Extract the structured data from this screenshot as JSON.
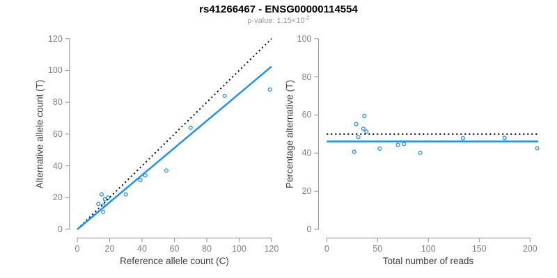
{
  "header": {
    "title": "rs41266467 - ENSG00000114554",
    "p_value_label": "p-value: ",
    "p_value_mantissa": "1.15×10",
    "p_value_exponent": "-2"
  },
  "colors": {
    "accent_blue": "#1E90FF",
    "dotted_black": "#000000",
    "axis_line": "#9e9e9e",
    "tick_label": "#7f7f7f",
    "axis_title": "#3f3f3f",
    "subtitle_gray": "#999999"
  },
  "chart_data": [
    {
      "type": "scatter",
      "name": "allele-count-scatter",
      "xlabel": "Reference allele count (C)",
      "ylabel": "Alternative allele count (T)",
      "xlim": [
        0,
        120
      ],
      "ylim": [
        0,
        120
      ],
      "xticks": [
        0,
        20,
        40,
        60,
        80,
        100,
        120
      ],
      "yticks": [
        0,
        20,
        40,
        60,
        80,
        100,
        120
      ],
      "grid": false,
      "legend": null,
      "points": [
        [
          13,
          16
        ],
        [
          15,
          22
        ],
        [
          16,
          11
        ],
        [
          16,
          15
        ],
        [
          17,
          19
        ],
        [
          19,
          20
        ],
        [
          30,
          22
        ],
        [
          39,
          31
        ],
        [
          42,
          34
        ],
        [
          55,
          37
        ],
        [
          70,
          64
        ],
        [
          91,
          84
        ],
        [
          119,
          88
        ]
      ],
      "lines": [
        {
          "name": "identity-line",
          "style": "dotted",
          "color": "#000000",
          "x1": 0,
          "y1": 0,
          "x2": 120,
          "y2": 120
        },
        {
          "name": "regression-line",
          "style": "solid",
          "color": "#1E90FF",
          "x1": 0,
          "y1": 0,
          "x2": 120,
          "y2": 102.5
        }
      ]
    },
    {
      "type": "scatter",
      "name": "percentage-alternative-scatter",
      "xlabel": "Total number of reads",
      "ylabel": "Percentage alternative (T)",
      "xlim": [
        0,
        208
      ],
      "ylim": [
        0,
        100
      ],
      "xticks": [
        0,
        50,
        100,
        150,
        200
      ],
      "yticks": [
        0,
        20,
        40,
        60,
        80,
        100
      ],
      "grid": false,
      "legend": null,
      "points": [
        [
          29,
          55.2
        ],
        [
          37,
          59.5
        ],
        [
          27,
          40.7
        ],
        [
          31,
          48.4
        ],
        [
          36,
          52.8
        ],
        [
          39,
          51.3
        ],
        [
          52,
          42.3
        ],
        [
          70,
          44.3
        ],
        [
          76,
          44.7
        ],
        [
          92,
          40.2
        ],
        [
          134,
          47.8
        ],
        [
          175,
          48.0
        ],
        [
          207,
          42.5
        ]
      ],
      "lines": [
        {
          "name": "expected-50pct-line",
          "style": "dotted",
          "color": "#000000",
          "x1": 0,
          "y1": 50,
          "x2": 208,
          "y2": 50
        },
        {
          "name": "observed-mean-line",
          "style": "solid",
          "color": "#1E90FF",
          "x1": 0,
          "y1": 46.1,
          "x2": 208,
          "y2": 46.1
        }
      ]
    }
  ]
}
